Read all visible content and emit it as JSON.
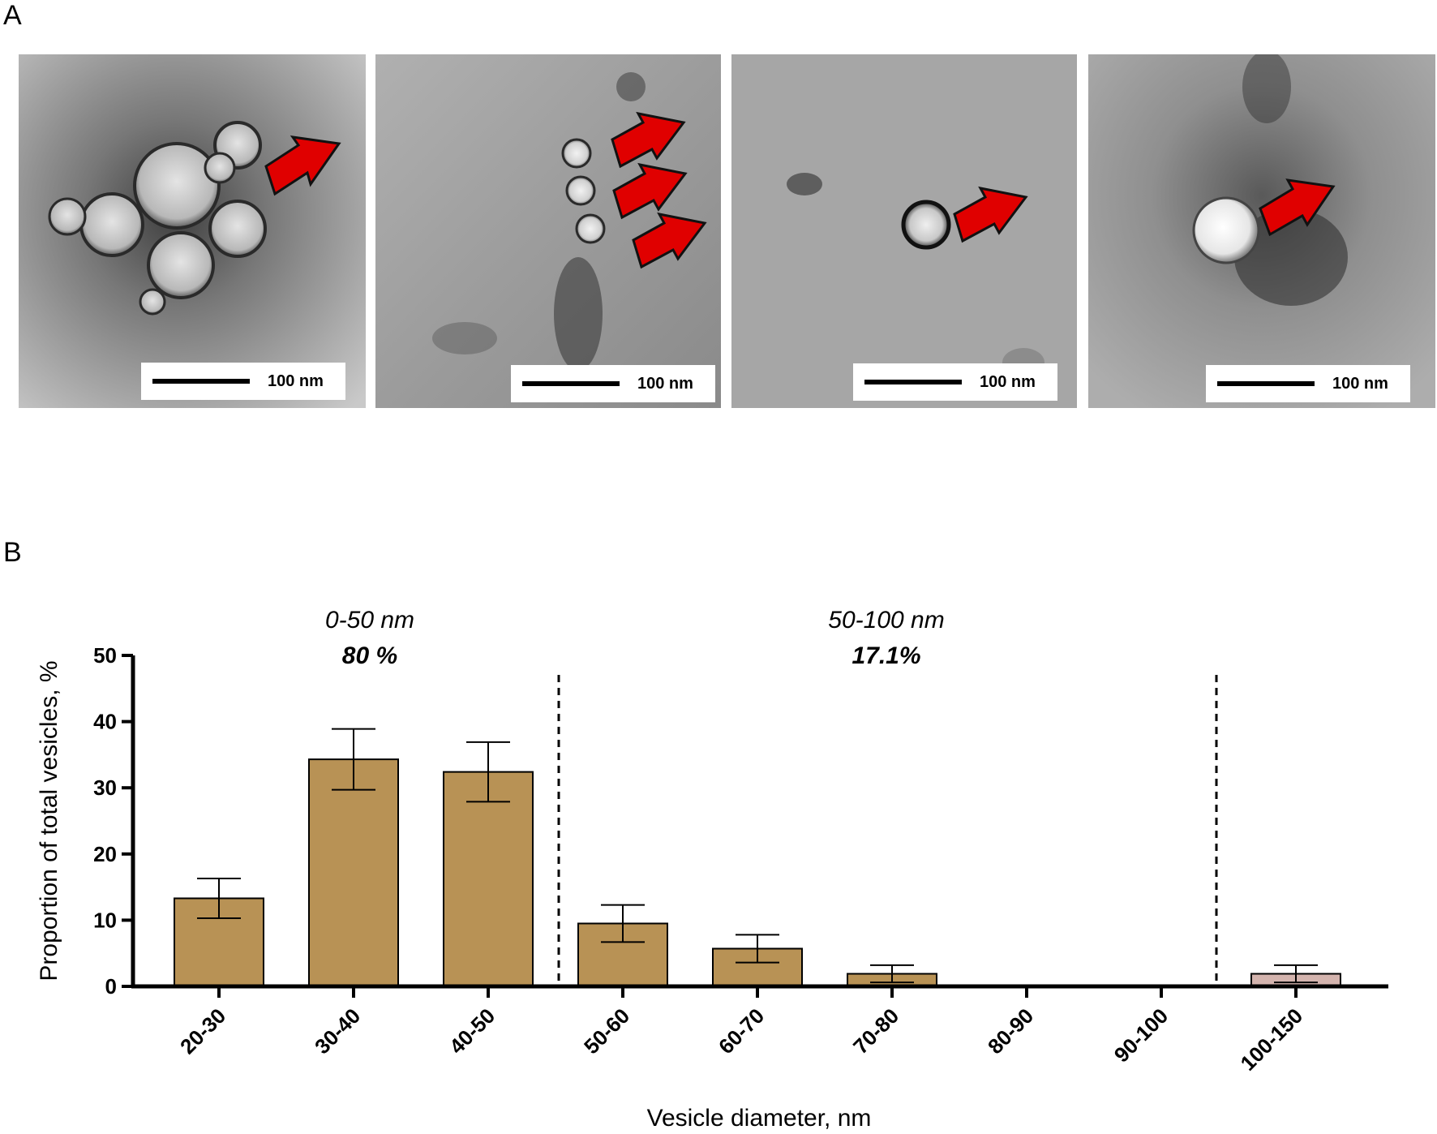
{
  "panel_labels": {
    "a": "A",
    "b": "B"
  },
  "micrographs": [
    {
      "name": "tem-image-1",
      "scale_label": "100 nm",
      "arrows": 1
    },
    {
      "name": "tem-image-2",
      "scale_label": "100 nm",
      "arrows": 3
    },
    {
      "name": "tem-image-3",
      "scale_label": "100 nm",
      "arrows": 1
    },
    {
      "name": "tem-image-4",
      "scale_label": "100 nm",
      "arrows": 1
    }
  ],
  "colors": {
    "bar_main": "#b89255",
    "bar_last": "#d4b4ae",
    "arrow": "#e00000"
  },
  "chart_data": {
    "type": "bar",
    "categories": [
      "20-30",
      "30-40",
      "40-50",
      "50-60",
      "60-70",
      "70-80",
      "80-90",
      "90-100",
      "100-150"
    ],
    "values": [
      13.3,
      34.3,
      32.4,
      9.5,
      5.7,
      1.9,
      0,
      0,
      1.9
    ],
    "errors": [
      3.0,
      4.6,
      4.5,
      2.8,
      2.1,
      1.3,
      0,
      0,
      1.3
    ],
    "xlabel": "Vesicle diameter, nm",
    "ylabel": "Proportion of total vesicles, %",
    "ylim": [
      0,
      50
    ],
    "yticks": [
      "0",
      "10",
      "20",
      "30",
      "40",
      "50"
    ],
    "grid": false,
    "annotations": [
      {
        "range": "0-50 nm",
        "value": "80 %"
      },
      {
        "range": "50-100 nm",
        "value": "17.1%"
      }
    ]
  }
}
